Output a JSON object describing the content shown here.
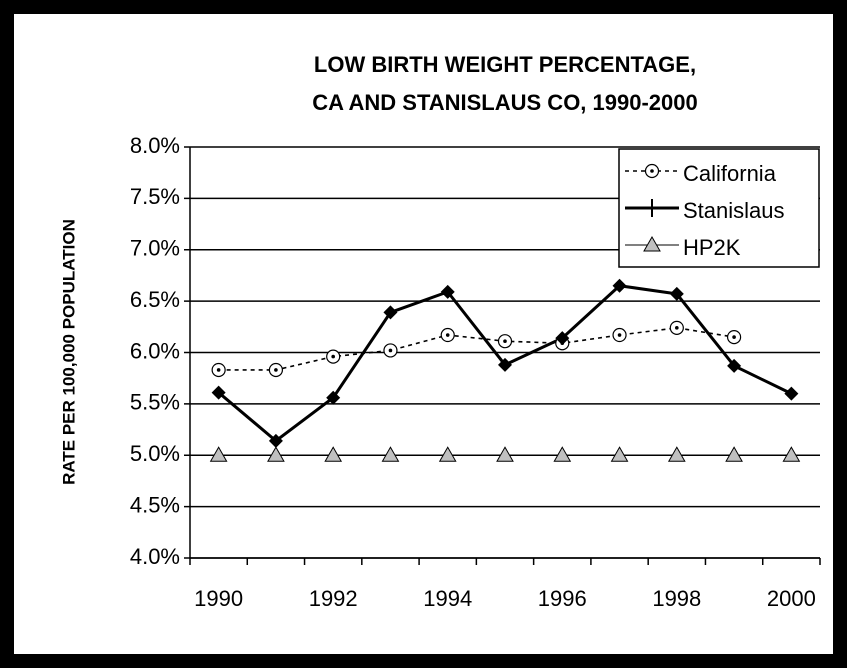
{
  "chart_data": {
    "type": "line",
    "title": [
      "LOW BIRTH WEIGHT PERCENTAGE,",
      "CA AND STANISLAUS CO, 1990-2000"
    ],
    "y_label": "RATE PER 100,000 POPULATION",
    "categories": [
      "1990",
      null,
      "1992",
      null,
      "1994",
      null,
      "1996",
      null,
      "1998",
      null,
      "2000"
    ],
    "series": [
      {
        "name": "California",
        "color": "#000000",
        "marker": "circle",
        "dashed": true,
        "line": true,
        "values": [
          5.83,
          5.83,
          5.96,
          6.02,
          6.17,
          6.11,
          6.09,
          6.17,
          6.24,
          6.15,
          null
        ]
      },
      {
        "name": "Stanislaus",
        "color": "#000000",
        "marker": "diamond",
        "dashed": false,
        "line": true,
        "values": [
          5.61,
          5.14,
          5.56,
          6.39,
          6.59,
          5.88,
          6.14,
          6.65,
          6.57,
          5.87,
          5.6
        ]
      },
      {
        "name": "HP2K",
        "color": "#c0c0c0",
        "marker": "triangle",
        "dashed": false,
        "line": false,
        "values": [
          5.0,
          5.0,
          5.0,
          5.0,
          5.0,
          5.0,
          5.0,
          5.0,
          5.0,
          5.0,
          5.0
        ]
      }
    ],
    "ylim": [
      4.0,
      8.0
    ],
    "yticks": [
      {
        "value": 4.0,
        "label": "4.0%"
      },
      {
        "value": 4.5,
        "label": "4.5%"
      },
      {
        "value": 5.0,
        "label": "5.0%"
      },
      {
        "value": 5.5,
        "label": "5.5%"
      },
      {
        "value": 6.0,
        "label": "6.0%"
      },
      {
        "value": 6.5,
        "label": "6.5%"
      },
      {
        "value": 7.0,
        "label": "7.0%"
      },
      {
        "value": 7.5,
        "label": "7.5%"
      },
      {
        "value": 8.0,
        "label": "8.0%"
      }
    ],
    "grid": true,
    "legend": "top-right"
  }
}
